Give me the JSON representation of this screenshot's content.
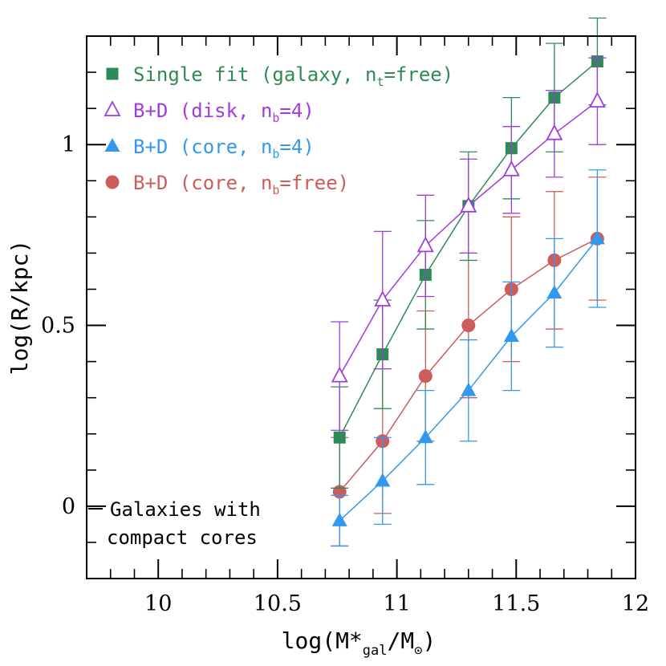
{
  "chart_data": {
    "type": "scatter",
    "xlabel": {
      "prefix": "log(M*",
      "sub": "gal",
      "mid": "/M",
      "suffix": ")"
    },
    "ylabel": "log(R/kpc)",
    "xlim": [
      9.7,
      12.0
    ],
    "ylim": [
      -0.2,
      1.3
    ],
    "x_ticks": [
      10,
      10.5,
      11,
      11.5,
      12
    ],
    "x_tick_labels": [
      "10",
      "10.5",
      "11",
      "11.5",
      "12"
    ],
    "y_ticks": [
      0,
      0.5,
      1
    ],
    "y_tick_labels": [
      "0",
      "0.5",
      "1"
    ],
    "x_minor_step": 0.1,
    "y_minor_step": 0.1,
    "grid": false,
    "legend_position": "top-left",
    "annotation": [
      "Galaxies with",
      "compact cores"
    ],
    "series": [
      {
        "name": "Single fit (galaxy, n_t=free)",
        "legend": {
          "pre": "Single fit (galaxy, n",
          "sub": "t",
          "post": "=free)"
        },
        "color": "#2e8b57",
        "marker": "filled-square",
        "x": [
          10.76,
          10.94,
          11.12,
          11.3,
          11.48,
          11.66,
          11.84
        ],
        "y": [
          0.19,
          0.42,
          0.64,
          0.83,
          0.99,
          1.13,
          1.23
        ],
        "err": [
          0.14,
          0.15,
          0.15,
          0.15,
          0.14,
          0.15,
          0.12
        ]
      },
      {
        "name": "B+D (disk, n_b=4)",
        "legend": {
          "pre": "B+D (disk, n",
          "sub": "b",
          "post": "=4)"
        },
        "color": "#a03cdc",
        "marker": "open-triangle",
        "x": [
          10.76,
          10.94,
          11.12,
          11.3,
          11.48,
          11.66,
          11.84
        ],
        "y": [
          0.36,
          0.57,
          0.72,
          0.83,
          0.93,
          1.03,
          1.12
        ],
        "err": [
          0.15,
          0.19,
          0.14,
          0.13,
          0.12,
          0.12,
          0.12
        ]
      },
      {
        "name": "B+D (core, n_b=4)",
        "legend": {
          "pre": "B+D (core, n",
          "sub": "b",
          "post": "=4)"
        },
        "color": "#3399ee",
        "marker": "filled-triangle",
        "x": [
          10.76,
          10.94,
          11.12,
          11.3,
          11.48,
          11.66,
          11.84
        ],
        "y": [
          -0.04,
          0.07,
          0.19,
          0.32,
          0.47,
          0.59,
          0.74
        ],
        "err": [
          0.07,
          0.12,
          0.13,
          0.14,
          0.15,
          0.15,
          0.19
        ]
      },
      {
        "name": "B+D (core, n_b=free)",
        "legend": {
          "pre": "B+D (core, n",
          "sub": "b",
          "post": "=free)"
        },
        "color": "#cd5c5c",
        "marker": "filled-circle",
        "x": [
          10.76,
          10.94,
          11.12,
          11.3,
          11.48,
          11.66,
          11.84
        ],
        "y": [
          0.04,
          0.18,
          0.36,
          0.5,
          0.6,
          0.68,
          0.74
        ],
        "err": [
          0.15,
          0.2,
          0.18,
          0.2,
          0.2,
          0.19,
          0.17
        ]
      }
    ]
  }
}
